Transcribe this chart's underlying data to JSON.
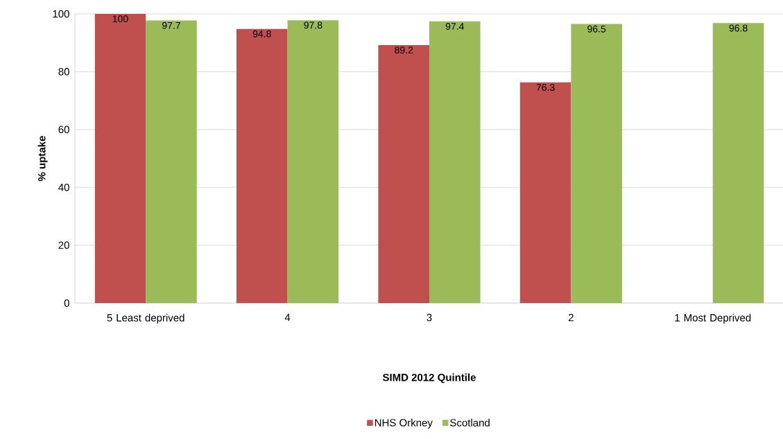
{
  "chart_data": {
    "type": "bar",
    "xlabel": "SIMD 2012 Quintile",
    "ylabel": "% uptake",
    "categories": [
      "5 Least deprived",
      "4",
      "3",
      "2",
      "1 Most Deprived"
    ],
    "series": [
      {
        "name": "NHS Orkney",
        "color": "#c0504d",
        "values": [
          100,
          94.8,
          89.2,
          76.3,
          null
        ]
      },
      {
        "name": "Scotland",
        "color": "#9bbb59",
        "values": [
          97.7,
          97.8,
          97.4,
          96.5,
          96.8
        ]
      }
    ],
    "ylim": [
      0,
      100
    ],
    "yticks": [
      0,
      20,
      40,
      60,
      80,
      100
    ],
    "grid": "y",
    "legend": "bottom",
    "data_labels": true
  }
}
